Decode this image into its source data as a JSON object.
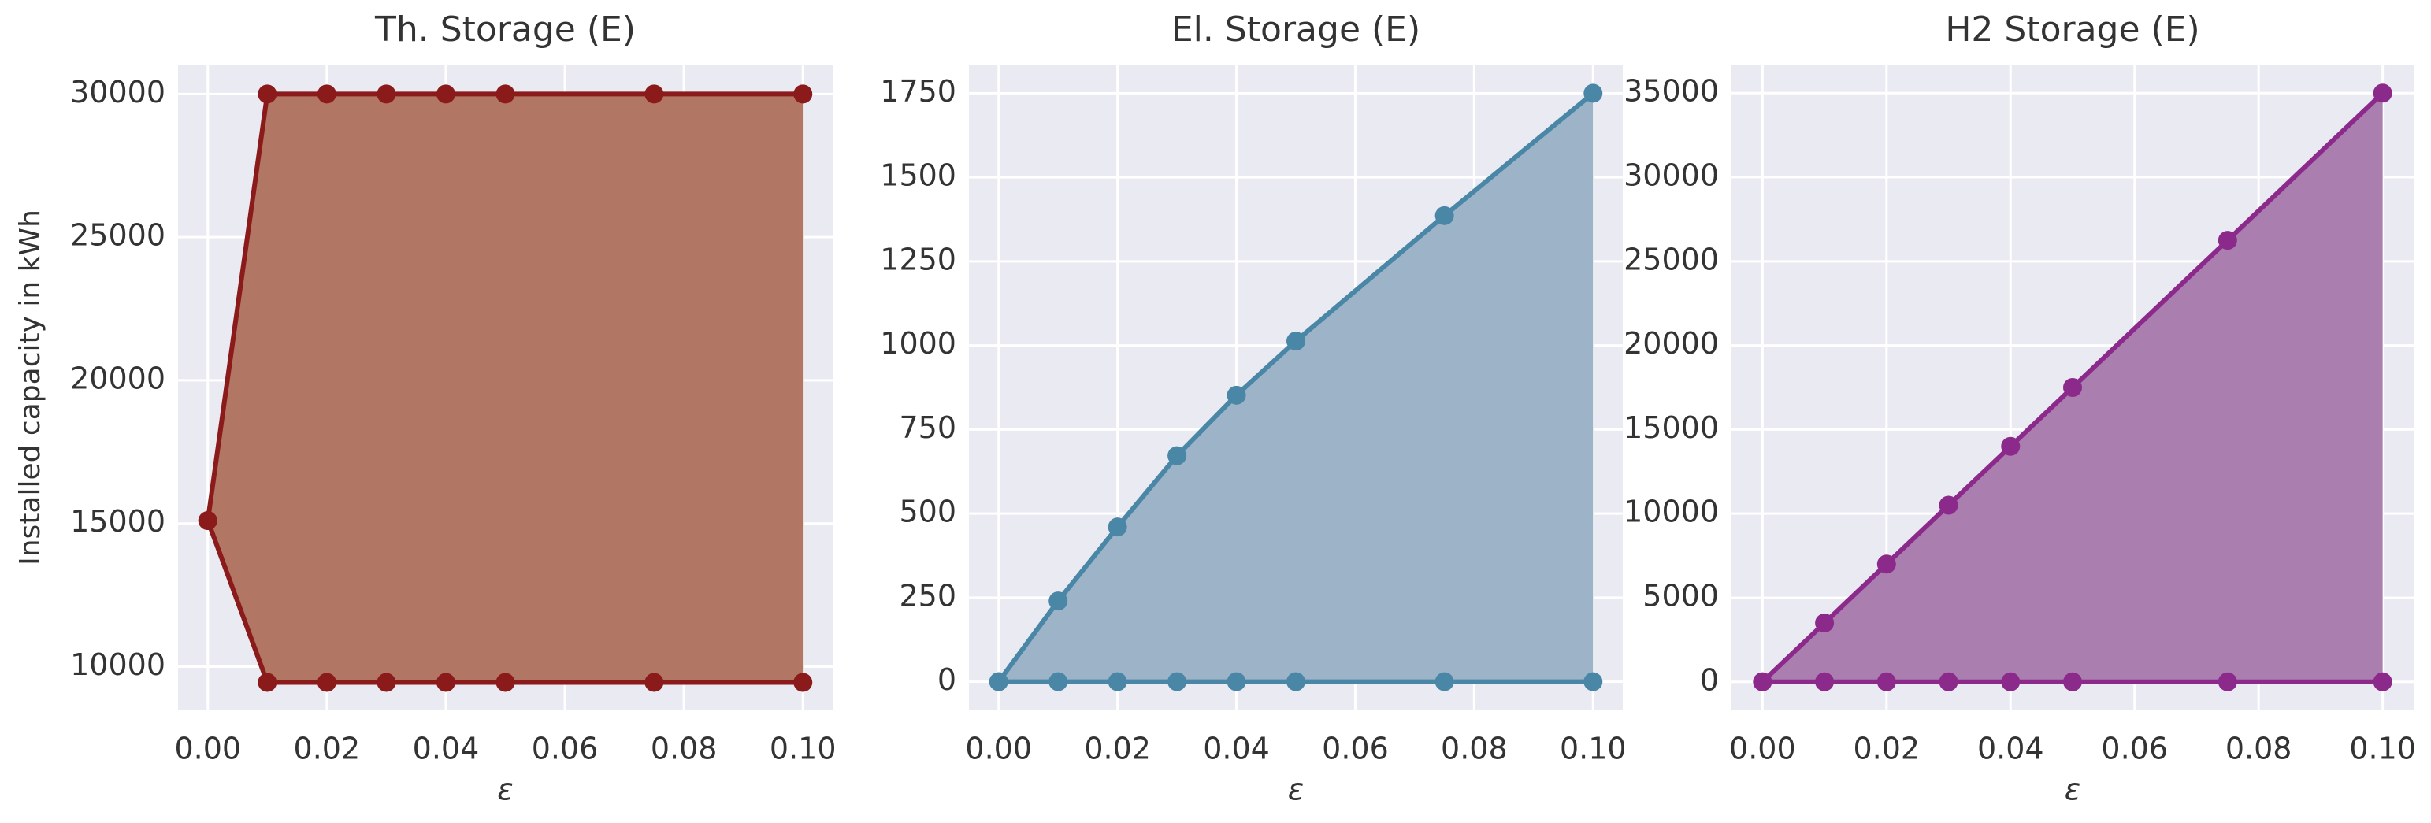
{
  "chart_data": [
    {
      "type": "area",
      "title": "Th. Storage (E)",
      "xlabel": "ε",
      "ylabel": "Installed capacity in kWh",
      "x": [
        0,
        0.01,
        0.02,
        0.03,
        0.04,
        0.05,
        0.075,
        0.1
      ],
      "series": [
        {
          "color": "#8b1a1a",
          "values": [
            15100,
            30000,
            30000,
            30000,
            30000,
            30000,
            30000,
            30000
          ]
        },
        {
          "color": "#8b1a1a",
          "values": [
            15100,
            9450,
            9450,
            9450,
            9450,
            9450,
            9450,
            9450
          ]
        }
      ],
      "fill_color": "#b27665",
      "xlim": [
        -0.005,
        0.105
      ],
      "ylim": [
        8500,
        31000
      ],
      "xticks": [
        {
          "value": 0,
          "label": "0.00"
        },
        {
          "value": 0.02,
          "label": "0.02"
        },
        {
          "value": 0.04,
          "label": "0.04"
        },
        {
          "value": 0.06,
          "label": "0.06"
        },
        {
          "value": 0.08,
          "label": "0.08"
        },
        {
          "value": 0.1,
          "label": "0.10"
        }
      ],
      "yticks": [
        10000,
        15000,
        20000,
        25000,
        30000
      ],
      "grid": true
    },
    {
      "type": "area",
      "title": "El. Storage (E)",
      "xlabel": "ε",
      "x": [
        0,
        0.01,
        0.02,
        0.03,
        0.04,
        0.05,
        0.075,
        0.1
      ],
      "series": [
        {
          "color": "#4a87a6",
          "values": [
            0,
            240,
            460,
            672,
            852,
            1013,
            1386,
            1750
          ]
        },
        {
          "color": "#4a87a6",
          "values": [
            0,
            0,
            0,
            0,
            0,
            0,
            0,
            0
          ]
        }
      ],
      "fill_color": "#9cb3c8",
      "xlim": [
        -0.005,
        0.105
      ],
      "ylim": [
        -83,
        1833
      ],
      "xticks": [
        {
          "value": 0,
          "label": "0.00"
        },
        {
          "value": 0.02,
          "label": "0.02"
        },
        {
          "value": 0.04,
          "label": "0.04"
        },
        {
          "value": 0.06,
          "label": "0.06"
        },
        {
          "value": 0.08,
          "label": "0.08"
        },
        {
          "value": 0.1,
          "label": "0.10"
        }
      ],
      "yticks": [
        0,
        250,
        500,
        750,
        1000,
        1250,
        1500,
        1750
      ],
      "grid": true
    },
    {
      "type": "area",
      "title": "H2 Storage (E)",
      "xlabel": "ε",
      "x": [
        0,
        0.01,
        0.02,
        0.03,
        0.04,
        0.05,
        0.075,
        0.1
      ],
      "series": [
        {
          "color": "#8b2a8b",
          "values": [
            0,
            3500,
            7000,
            10500,
            14000,
            17500,
            26250,
            35000
          ]
        },
        {
          "color": "#8b2a8b",
          "values": [
            0,
            0,
            0,
            0,
            0,
            0,
            0,
            0
          ]
        }
      ],
      "fill_color": "#ab7eb0",
      "xlim": [
        -0.005,
        0.105
      ],
      "ylim": [
        -1650,
        36650
      ],
      "xticks": [
        {
          "value": 0,
          "label": "0.00"
        },
        {
          "value": 0.02,
          "label": "0.02"
        },
        {
          "value": 0.04,
          "label": "0.04"
        },
        {
          "value": 0.06,
          "label": "0.06"
        },
        {
          "value": 0.08,
          "label": "0.08"
        },
        {
          "value": 0.1,
          "label": "0.10"
        }
      ],
      "yticks": [
        0,
        5000,
        10000,
        15000,
        20000,
        25000,
        30000,
        35000
      ],
      "grid": true
    }
  ]
}
